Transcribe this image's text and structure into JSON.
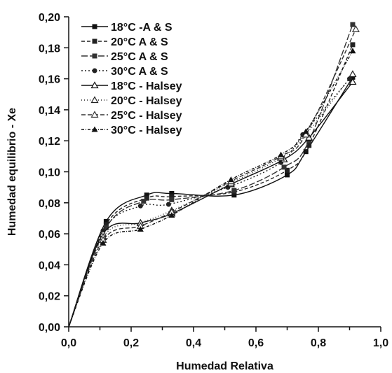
{
  "chart_data": {
    "type": "line",
    "title": "",
    "xlabel": "Humedad Relativa",
    "ylabel": "Humedad equilibrio - Xe",
    "xlim": [
      0.0,
      1.0
    ],
    "ylim": [
      0.0,
      0.2
    ],
    "x_ticks": [
      0.0,
      0.2,
      0.4,
      0.6,
      0.8,
      1.0
    ],
    "y_ticks": [
      0.0,
      0.02,
      0.04,
      0.06,
      0.08,
      0.1,
      0.12,
      0.14,
      0.16,
      0.18,
      0.2
    ],
    "x_tick_labels": [
      "0,0",
      "0,2",
      "0,4",
      "0,6",
      "0,8",
      "1,0"
    ],
    "y_tick_labels": [
      "0,00",
      "0,02",
      "0,04",
      "0,06",
      "0,08",
      "0,10",
      "0,12",
      "0,14",
      "0,16",
      "0,18",
      "0,20"
    ],
    "grid": false,
    "legend_position": "top-left",
    "series": [
      {
        "name": "18°C -A & S",
        "marker": "square",
        "dash": "",
        "color": "#111111",
        "x": [
          0.0,
          0.12,
          0.25,
          0.33,
          0.53,
          0.7,
          0.76,
          0.91
        ],
        "y": [
          0.0,
          0.068,
          0.085,
          0.086,
          0.085,
          0.098,
          0.113,
          0.161
        ]
      },
      {
        "name": "20°C A & S",
        "marker": "square",
        "dash": "5,3",
        "color": "#222222",
        "x": [
          0.0,
          0.12,
          0.25,
          0.33,
          0.53,
          0.7,
          0.77,
          0.91
        ],
        "y": [
          0.0,
          0.066,
          0.083,
          0.084,
          0.087,
          0.101,
          0.117,
          0.182
        ]
      },
      {
        "name": "25°C A & S",
        "marker": "square",
        "dash": "9,3",
        "color": "#333333",
        "x": [
          0.0,
          0.12,
          0.24,
          0.33,
          0.53,
          0.69,
          0.77,
          0.91
        ],
        "y": [
          0.0,
          0.064,
          0.081,
          0.082,
          0.088,
          0.103,
          0.12,
          0.195
        ]
      },
      {
        "name": "30°C A & S",
        "marker": "circle",
        "dash": "2,3",
        "color": "#222222",
        "x": [
          0.0,
          0.11,
          0.23,
          0.32,
          0.51,
          0.68,
          0.75,
          0.9
        ],
        "y": [
          0.0,
          0.062,
          0.078,
          0.079,
          0.09,
          0.106,
          0.124,
          0.16
        ]
      },
      {
        "name": "18°C - Halsey",
        "marker": "triangle-open",
        "dash": "",
        "color": "#111111",
        "x": [
          0.0,
          0.11,
          0.23,
          0.33,
          0.52,
          0.69,
          0.77,
          0.91
        ],
        "y": [
          0.0,
          0.06,
          0.067,
          0.073,
          0.092,
          0.108,
          0.122,
          0.158
        ]
      },
      {
        "name": "20°C - Halsey",
        "marker": "triangle-open",
        "dash": "1,3",
        "color": "#222222",
        "x": [
          0.0,
          0.11,
          0.23,
          0.33,
          0.52,
          0.68,
          0.76,
          0.91
        ],
        "y": [
          0.0,
          0.058,
          0.067,
          0.075,
          0.093,
          0.109,
          0.124,
          0.163
        ]
      },
      {
        "name": "25°C - Halsey",
        "marker": "triangle-open",
        "dash": "6,3",
        "color": "#333333",
        "x": [
          0.0,
          0.11,
          0.23,
          0.33,
          0.52,
          0.68,
          0.76,
          0.92
        ],
        "y": [
          0.0,
          0.056,
          0.065,
          0.074,
          0.094,
          0.11,
          0.124,
          0.192
        ]
      },
      {
        "name": "30°C - Halsey",
        "marker": "triangle-filled",
        "dash": "4,2,1,2",
        "color": "#111111",
        "x": [
          0.0,
          0.11,
          0.23,
          0.33,
          0.52,
          0.68,
          0.76,
          0.91
        ],
        "y": [
          0.0,
          0.054,
          0.063,
          0.072,
          0.095,
          0.111,
          0.126,
          0.178
        ]
      }
    ]
  }
}
